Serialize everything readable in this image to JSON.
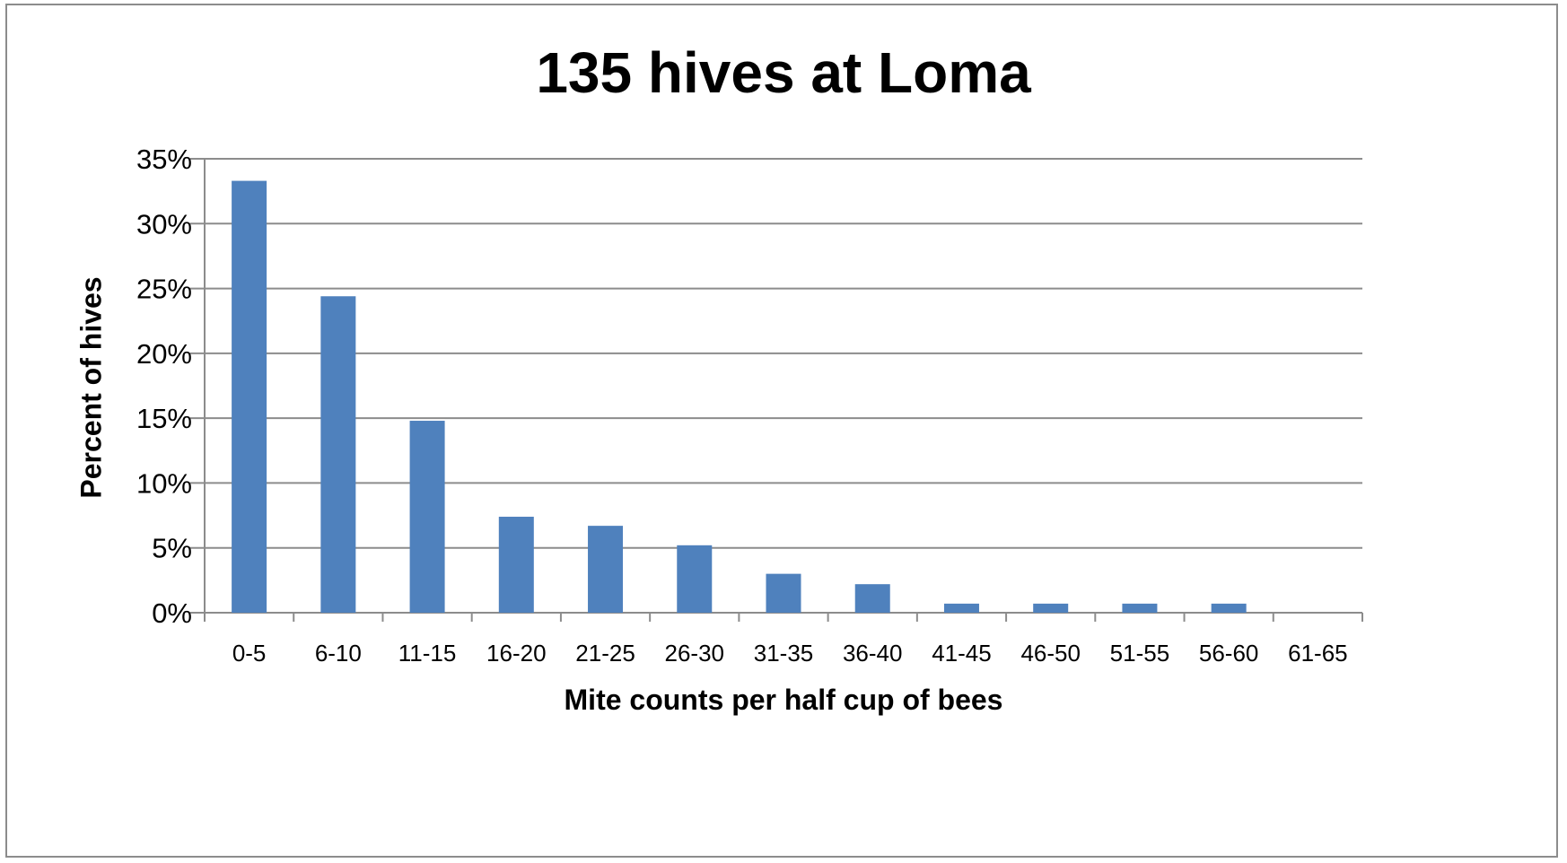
{
  "chart_data": {
    "type": "bar",
    "title": "135 hives at Loma",
    "xlabel": "Mite counts per half cup of bees",
    "ylabel": "Percent of hives",
    "categories": [
      "0-5",
      "6-10",
      "11-15",
      "16-20",
      "21-25",
      "26-30",
      "31-35",
      "36-40",
      "41-45",
      "46-50",
      "51-55",
      "56-60",
      "61-65"
    ],
    "values": [
      33.3,
      24.4,
      14.8,
      7.4,
      6.7,
      5.2,
      3.0,
      2.2,
      0.7,
      0.7,
      0.7,
      0.7,
      0.0
    ],
    "ylim": [
      0,
      35
    ],
    "yticks": [
      "0%",
      "5%",
      "10%",
      "15%",
      "20%",
      "25%",
      "30%",
      "35%"
    ],
    "ytick_values": [
      0,
      5,
      10,
      15,
      20,
      25,
      30,
      35
    ],
    "grid": true,
    "legend": null,
    "bar_color": "#4f81bd",
    "grid_color": "#8c8c8c"
  }
}
